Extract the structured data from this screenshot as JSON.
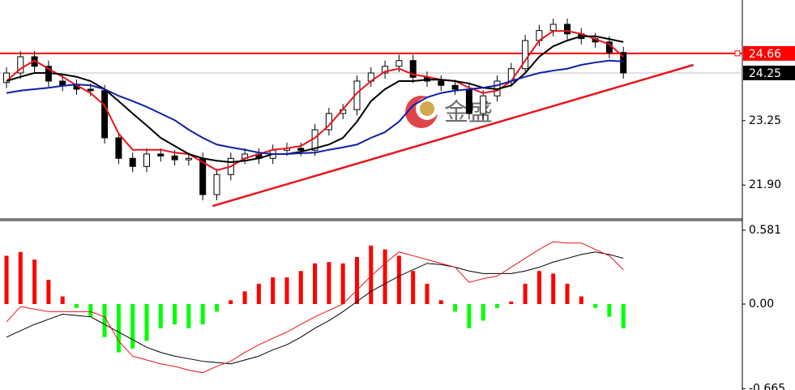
{
  "chart_data": [
    {
      "type": "candlestick",
      "ylim": [
        21.19,
        25.78
      ],
      "yticks": [
        {
          "value": 21.9,
          "label": "21.90"
        },
        23.25
      ],
      "open": [
        24.05,
        24.25,
        24.59,
        24.39,
        24.08,
        23.99,
        23.91,
        23.88,
        22.89,
        22.46,
        22.29,
        22.55,
        22.51,
        22.43,
        22.46,
        21.7,
        22.12,
        22.46,
        22.55,
        22.46,
        22.63,
        22.67,
        22.63,
        23.06,
        23.4,
        23.48,
        24.08,
        24.25,
        24.39,
        24.51,
        24.16,
        24.08,
        23.99,
        23.91,
        23.4,
        23.77,
        24.08,
        24.34,
        24.93,
        25.14,
        25.27,
        25.07,
        24.97,
        24.9,
        24.68
      ],
      "high": [
        24.37,
        24.71,
        24.71,
        24.51,
        24.2,
        24.11,
        24.03,
        24.0,
        23.01,
        22.58,
        22.67,
        22.67,
        22.63,
        22.58,
        22.58,
        22.24,
        22.58,
        22.67,
        22.67,
        22.75,
        22.79,
        22.79,
        23.18,
        23.52,
        23.6,
        24.2,
        24.37,
        24.51,
        24.63,
        24.63,
        24.28,
        24.2,
        24.11,
        24.03,
        23.89,
        24.2,
        24.46,
        25.05,
        25.26,
        25.39,
        25.39,
        25.19,
        25.09,
        25.02,
        24.8
      ],
      "low": [
        23.93,
        24.13,
        24.27,
        23.96,
        23.87,
        23.79,
        23.76,
        22.77,
        22.34,
        22.17,
        22.17,
        22.39,
        22.31,
        22.31,
        21.58,
        21.58,
        22.0,
        22.34,
        22.34,
        22.34,
        22.51,
        22.51,
        22.51,
        22.94,
        23.28,
        23.36,
        23.96,
        24.13,
        24.27,
        24.04,
        23.96,
        23.87,
        23.79,
        23.28,
        23.28,
        23.65,
        23.96,
        24.22,
        24.81,
        25.02,
        24.95,
        24.85,
        24.78,
        24.56,
        24.13
      ],
      "close": [
        24.25,
        24.59,
        24.39,
        24.08,
        23.99,
        23.91,
        23.88,
        22.89,
        22.46,
        22.29,
        22.55,
        22.51,
        22.43,
        22.46,
        21.7,
        22.12,
        22.46,
        22.55,
        22.46,
        22.63,
        22.67,
        22.63,
        23.06,
        23.4,
        23.48,
        24.08,
        24.25,
        24.39,
        24.51,
        24.16,
        24.08,
        23.99,
        23.91,
        23.4,
        23.77,
        24.08,
        24.34,
        24.93,
        25.14,
        25.27,
        25.07,
        24.97,
        24.9,
        24.68,
        24.25
      ],
      "up_color": "#ffffff",
      "down_color": "#000000",
      "series": [
        {
          "color": "#e8141b",
          "values": [
            24.08,
            24.34,
            24.51,
            24.34,
            24.17,
            23.99,
            23.83,
            23.57,
            22.98,
            22.64,
            22.64,
            22.64,
            22.58,
            22.55,
            22.38,
            22.21,
            22.29,
            22.46,
            22.55,
            22.64,
            22.67,
            22.72,
            22.89,
            23.15,
            23.49,
            23.83,
            24.08,
            24.28,
            24.34,
            24.22,
            24.17,
            24.11,
            24.08,
            23.94,
            23.83,
            23.88,
            24.08,
            24.51,
            24.93,
            25.13,
            25.13,
            25.07,
            24.96,
            24.85,
            24.59
          ]
        },
        {
          "color": "#000000",
          "values": [
            24.08,
            24.17,
            24.25,
            24.25,
            24.22,
            24.17,
            24.08,
            23.91,
            23.66,
            23.4,
            23.15,
            22.89,
            22.72,
            22.55,
            22.46,
            22.41,
            22.38,
            22.41,
            22.46,
            22.55,
            22.55,
            22.6,
            22.67,
            22.75,
            22.89,
            23.23,
            23.66,
            23.91,
            24.08,
            24.08,
            24.11,
            24.11,
            24.08,
            24.03,
            23.94,
            23.91,
            23.99,
            24.25,
            24.59,
            24.81,
            24.93,
            25.02,
            25.02,
            24.96,
            24.9
          ]
        },
        {
          "color": "#0f1fa8",
          "values": [
            23.83,
            23.88,
            23.91,
            23.94,
            23.98,
            24.01,
            23.99,
            23.91,
            23.77,
            23.66,
            23.54,
            23.4,
            23.26,
            23.06,
            22.89,
            22.75,
            22.69,
            22.64,
            22.58,
            22.55,
            22.55,
            22.57,
            22.58,
            22.64,
            22.69,
            22.75,
            22.89,
            23.01,
            23.23,
            23.57,
            23.74,
            23.83,
            23.88,
            23.91,
            23.94,
            23.99,
            24.08,
            24.17,
            24.25,
            24.3,
            24.34,
            24.42,
            24.47,
            24.51,
            24.49
          ]
        }
      ],
      "price_lines": [
        {
          "value": 24.66,
          "line_color": "#ff0000",
          "box_color": "#ff0000"
        },
        {
          "value": 24.25,
          "line_color": "#c0c0c0",
          "box_color": "#000000"
        }
      ],
      "trendline": {
        "x": [
          14.7,
          49
        ],
        "y": [
          21.46,
          24.42
        ],
        "color": "#e8141b"
      },
      "watermark": "金盛"
    },
    {
      "type": "macd",
      "ylim": [
        -0.676,
        0.657
      ],
      "yticks": [
        0.581,
        {
          "value": 0,
          "label": "0.00"
        },
        -0.665
      ],
      "values": [
        0.38,
        0.41,
        0.35,
        0.19,
        0.06,
        -0.03,
        -0.1,
        -0.26,
        -0.38,
        -0.35,
        -0.29,
        -0.19,
        -0.16,
        -0.19,
        -0.16,
        -0.06,
        0.03,
        0.1,
        0.16,
        0.21,
        0.21,
        0.26,
        0.32,
        0.33,
        0.32,
        0.37,
        0.46,
        0.43,
        0.38,
        0.26,
        0.16,
        0.03,
        -0.06,
        -0.19,
        -0.13,
        -0.03,
        0.02,
        0.16,
        0.26,
        0.24,
        0.16,
        0.06,
        -0.03,
        -0.1,
        -0.19
      ],
      "positive_color": "#ff0000",
      "negative_color": "#00ff00",
      "series": [
        {
          "color": "#000000",
          "values": [
            -0.26,
            -0.21,
            -0.16,
            -0.12,
            -0.08,
            -0.09,
            -0.1,
            -0.16,
            -0.22,
            -0.28,
            -0.34,
            -0.38,
            -0.41,
            -0.43,
            -0.45,
            -0.46,
            -0.47,
            -0.44,
            -0.41,
            -0.36,
            -0.32,
            -0.26,
            -0.19,
            -0.13,
            -0.06,
            0.02,
            0.1,
            0.16,
            0.22,
            0.27,
            0.32,
            0.31,
            0.29,
            0.26,
            0.24,
            0.24,
            0.24,
            0.26,
            0.29,
            0.33,
            0.36,
            0.39,
            0.41,
            0.39,
            0.36
          ]
        },
        {
          "color": "#e8141b",
          "values": [
            -0.14,
            -0.02,
            -0.04,
            -0.06,
            -0.06,
            -0.06,
            -0.06,
            -0.1,
            -0.29,
            -0.41,
            -0.44,
            -0.47,
            -0.49,
            -0.52,
            -0.54,
            -0.49,
            -0.45,
            -0.38,
            -0.32,
            -0.27,
            -0.22,
            -0.16,
            -0.1,
            -0.05,
            0.0,
            0.11,
            0.22,
            0.32,
            0.41,
            0.38,
            0.35,
            0.32,
            0.29,
            0.17,
            0.2,
            0.22,
            0.29,
            0.36,
            0.43,
            0.49,
            0.48,
            0.48,
            0.43,
            0.38,
            0.27
          ]
        }
      ]
    }
  ]
}
